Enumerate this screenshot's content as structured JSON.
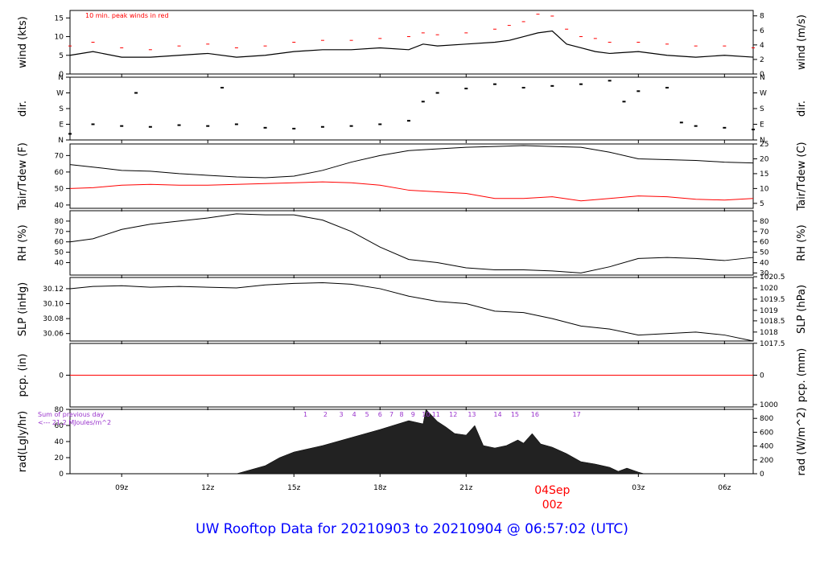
{
  "title": "UW Rooftop Data for 20210903  to  20210904 @ 06:57:02  (UTC)",
  "colors": {
    "series": "#000000",
    "dewpoint": "#ff0000",
    "precip": "#ff0000",
    "annotation_red": "#ff0000",
    "annotation_purple": "#9932cc",
    "title": "#0000ff"
  },
  "x_axis": {
    "ticks": [
      {
        "hour": 9,
        "label": "09z"
      },
      {
        "hour": 12,
        "label": "12z"
      },
      {
        "hour": 15,
        "label": "15z"
      },
      {
        "hour": 18,
        "label": "18z"
      },
      {
        "hour": 21,
        "label": "21z"
      },
      {
        "hour": 27,
        "label": "03z"
      },
      {
        "hour": 30,
        "label": "06z"
      }
    ],
    "date_marker": {
      "hour": 24,
      "date": "04Sep",
      "time": "00z"
    },
    "range_hours": [
      7.2,
      31.0
    ]
  },
  "panels": {
    "wind": {
      "left_label": "wind (kts)",
      "right_label": "wind (m/s)",
      "note": "10 min. peak winds in red"
    },
    "dir": {
      "left_label": "dir.",
      "right_label": "dir."
    },
    "temp": {
      "left_label": "Tair/Tdew (F)",
      "right_label": "Tair/Tdew (C)"
    },
    "rh": {
      "left_label": "RH (%)",
      "right_label": "RH (%)"
    },
    "slp": {
      "left_label": "SLP (inHg)",
      "right_label": "SLP (hPa)"
    },
    "pcp": {
      "left_label": "pcp. (in)",
      "right_label": "pcp. (mm)"
    },
    "rad": {
      "left_label": "rad(Lgly/hr)",
      "right_label": "rad (W/m^2)",
      "note_line1": "Sum of previous day",
      "note_line2": "<--- 21.2 MJoules/m^2"
    }
  },
  "chart_data": [
    {
      "type": "line",
      "name": "wind",
      "ylim": [
        0,
        17
      ],
      "left_ticks": [
        0,
        5,
        10,
        15
      ],
      "right_ticks": [
        "0",
        "2",
        "4",
        "6",
        "8"
      ],
      "right_tick_values_kts": [
        0,
        3.89,
        7.78,
        11.66,
        15.55
      ],
      "x": [
        7.2,
        8,
        9,
        10,
        11,
        12,
        13,
        14,
        15,
        16,
        17,
        18,
        19,
        19.5,
        20,
        21,
        22,
        22.5,
        23,
        23.5,
        24,
        24.5,
        25,
        25.5,
        26,
        27,
        28,
        29,
        30,
        31
      ],
      "values": [
        5,
        6,
        4.5,
        4.5,
        5,
        5.5,
        4.5,
        5,
        6,
        6.5,
        6.5,
        7,
        6.5,
        8,
        7.5,
        8,
        8.5,
        9,
        10,
        11,
        11.5,
        8,
        7,
        6,
        5.5,
        6,
        5,
        4.5,
        5,
        4.5
      ],
      "peaks": [
        7.5,
        8.5,
        7,
        6.5,
        7.5,
        8,
        7,
        7.5,
        8.5,
        9,
        9,
        9.5,
        10,
        11,
        10.5,
        11,
        12,
        13,
        14,
        16,
        15.5,
        12,
        10,
        9.5,
        8.5,
        8.5,
        8,
        7.5,
        7.5,
        7
      ]
    },
    {
      "type": "scatter",
      "name": "dir",
      "y_ticks": [
        "N",
        "E",
        "S",
        "W",
        "N"
      ],
      "ylim": [
        0,
        360
      ],
      "tick_values": [
        0,
        90,
        180,
        270,
        360
      ],
      "x": [
        7.2,
        8,
        9,
        9.5,
        10,
        11,
        12,
        12.5,
        13,
        14,
        15,
        16,
        17,
        18,
        19,
        19.5,
        20,
        21,
        22,
        23,
        24,
        25,
        26,
        26.5,
        27,
        28,
        28.5,
        29,
        30,
        31
      ],
      "values": [
        35,
        90,
        80,
        270,
        75,
        85,
        80,
        300,
        90,
        70,
        65,
        75,
        80,
        90,
        110,
        220,
        270,
        295,
        320,
        300,
        310,
        320,
        340,
        220,
        280,
        300,
        100,
        80,
        70,
        60
      ]
    },
    {
      "type": "line",
      "name": "temp",
      "ylim": [
        38,
        77
      ],
      "left_ticks": [
        40,
        50,
        60,
        70
      ],
      "right_ticks": [
        "5",
        "10",
        "15",
        "20",
        "25"
      ],
      "right_tick_values_f": [
        41,
        50,
        59,
        68,
        77
      ],
      "x": [
        7.2,
        8,
        9,
        10,
        11,
        12,
        13,
        14,
        15,
        16,
        17,
        18,
        19,
        20,
        21,
        22,
        23,
        24,
        25,
        26,
        27,
        28,
        29,
        30,
        31
      ],
      "series": [
        {
          "name": "Tair",
          "values": [
            64.5,
            63,
            61,
            60.5,
            59,
            58,
            57,
            56.5,
            57.5,
            61,
            66,
            70,
            73,
            74,
            75,
            75.5,
            76,
            75.5,
            75,
            72,
            68,
            67.5,
            67,
            66,
            65.5
          ]
        },
        {
          "name": "Tdew",
          "values": [
            50,
            50.5,
            52,
            52.5,
            52,
            52,
            52.5,
            53,
            53.5,
            54,
            53.5,
            52,
            49,
            48,
            47,
            44,
            44,
            45,
            42.5,
            44,
            45.5,
            45,
            43.5,
            43,
            44
          ]
        }
      ]
    },
    {
      "type": "line",
      "name": "rh",
      "ylim": [
        28,
        90
      ],
      "left_ticks": [
        40,
        50,
        60,
        70,
        80
      ],
      "right_ticks": [
        "30",
        "40",
        "50",
        "60",
        "70",
        "80"
      ],
      "right_tick_values": [
        30,
        40,
        50,
        60,
        70,
        80
      ],
      "x": [
        7.2,
        8,
        9,
        10,
        11,
        12,
        13,
        14,
        15,
        16,
        17,
        18,
        19,
        20,
        21,
        22,
        23,
        24,
        25,
        26,
        27,
        28,
        29,
        30,
        31
      ],
      "values": [
        60,
        63,
        72,
        77,
        80,
        83,
        87,
        86,
        86,
        81,
        70,
        55,
        43,
        40,
        35,
        33,
        33,
        32,
        30,
        36,
        44,
        45,
        44,
        42,
        45
      ]
    },
    {
      "type": "line",
      "name": "slp",
      "ylim": [
        30.05,
        30.135
      ],
      "left_ticks": [
        30.06,
        30.08,
        30.1,
        30.12
      ],
      "left_tick_labels": [
        "30.06",
        "30.08",
        "30.10",
        "30.12"
      ],
      "right_ticks": [
        "1017.5",
        "1018",
        "1018.5",
        "1019",
        "1019.5",
        "1020",
        "1020.5"
      ],
      "right_tick_values_inhg": [
        30.047,
        30.062,
        30.077,
        30.091,
        30.106,
        30.121,
        30.136
      ],
      "x": [
        7.2,
        8,
        9,
        10,
        11,
        12,
        13,
        14,
        15,
        16,
        17,
        18,
        19,
        20,
        21,
        22,
        23,
        24,
        25,
        26,
        27,
        28,
        29,
        30,
        31
      ],
      "values": [
        30.12,
        30.123,
        30.124,
        30.122,
        30.123,
        30.122,
        30.121,
        30.125,
        30.127,
        30.128,
        30.126,
        30.12,
        30.11,
        30.103,
        30.1,
        30.09,
        30.088,
        30.08,
        30.07,
        30.066,
        30.058,
        30.06,
        30.062,
        30.058,
        30.05
      ]
    },
    {
      "type": "line",
      "name": "pcp",
      "ylim": [
        -1,
        1
      ],
      "left_ticks": [
        0
      ],
      "right_ticks": [
        "0"
      ],
      "x": [
        7.2,
        31
      ],
      "values": [
        0,
        0
      ]
    },
    {
      "type": "area",
      "name": "rad",
      "ylim": [
        0,
        80
      ],
      "left_ticks": [
        0,
        20,
        40,
        60,
        80
      ],
      "right_ticks": [
        "0",
        "200",
        "400",
        "600",
        "800",
        "1000"
      ],
      "right_tick_values_lgly": [
        0,
        17.2,
        34.4,
        51.6,
        68.8,
        86
      ],
      "x": [
        7.2,
        13,
        13.5,
        14,
        14.5,
        15,
        16,
        17,
        18,
        19,
        19.5,
        19.6,
        20,
        20.3,
        20.6,
        21,
        21.3,
        21.6,
        22,
        22.4,
        22.8,
        23,
        23.3,
        23.6,
        24,
        24.5,
        25,
        25.5,
        26,
        26.3,
        26.6,
        27,
        27.2,
        31
      ],
      "values": [
        0,
        0,
        5,
        10,
        20,
        27,
        35,
        45,
        55,
        66,
        62,
        80,
        65,
        58,
        50,
        48,
        60,
        35,
        32,
        35,
        42,
        38,
        50,
        37,
        33,
        25,
        15,
        12,
        8,
        3,
        7,
        2,
        0,
        0
      ],
      "hour_labels": [
        "1",
        "2",
        "3",
        "4",
        "5",
        "6",
        "7",
        "8",
        "9",
        "10",
        "11",
        "12",
        "13",
        "14",
        "15",
        "16",
        "17"
      ],
      "hour_label_x": [
        15.4,
        16.1,
        16.65,
        17.1,
        17.55,
        18.0,
        18.4,
        18.75,
        19.15,
        19.6,
        19.95,
        20.55,
        21.2,
        22.1,
        22.7,
        23.4,
        24.85
      ]
    }
  ]
}
